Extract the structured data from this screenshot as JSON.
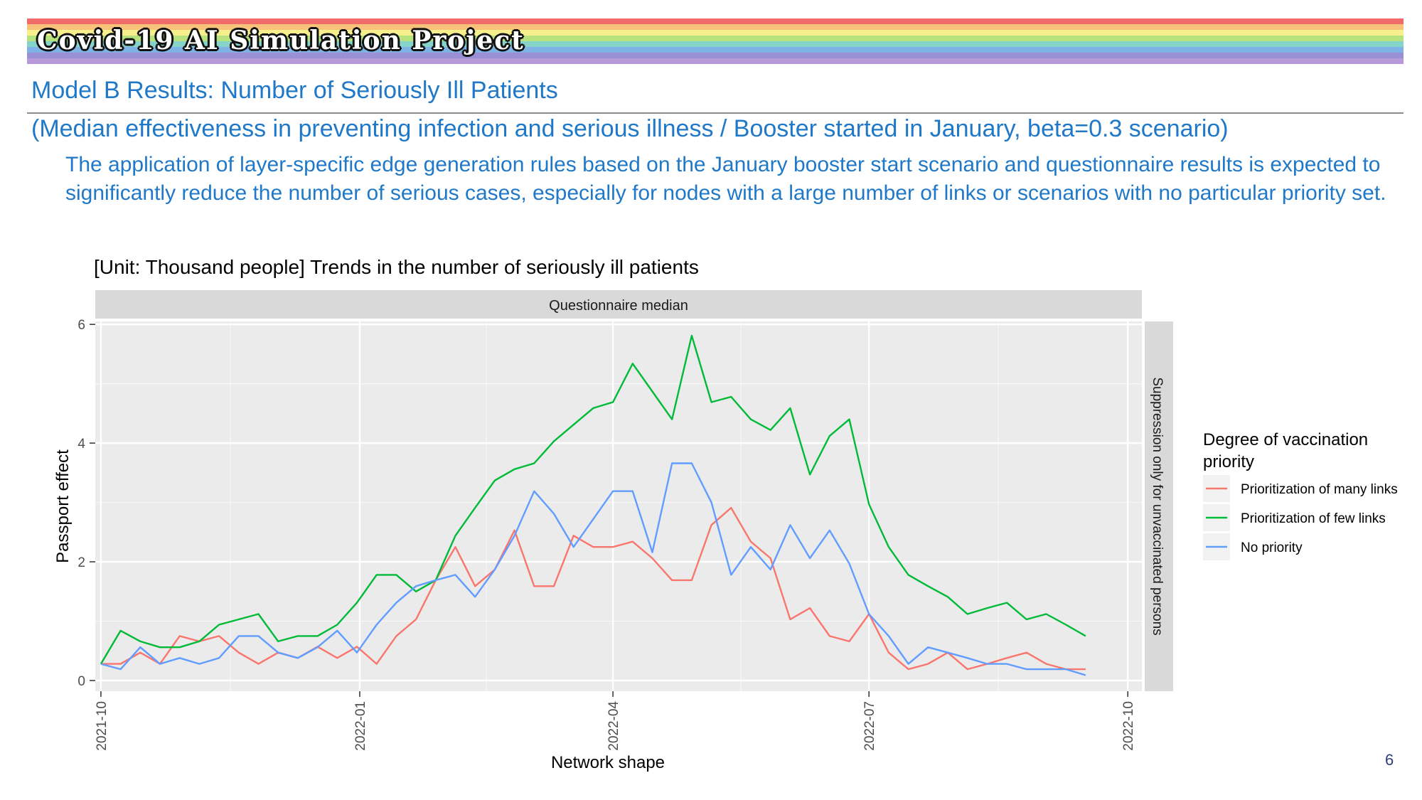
{
  "banner": {
    "title": "Covid-19 AI Simulation Project",
    "stripe_colors": [
      "#f26b6b",
      "#f7c27a",
      "#f6ef8c",
      "#b8e27e",
      "#86d3c9",
      "#7fb3e6",
      "#9b8fd6",
      "#b79ad8"
    ]
  },
  "title": "Model B Results: Number of Seriously Ill Patients",
  "subtitle": "(Median effectiveness in preventing infection and serious illness / Booster started in January, beta=0.3 scenario)",
  "description": "The application of layer-specific edge generation rules based on the January booster start scenario and questionnaire results is expected to significantly reduce the number of serious cases, especially for nodes with a large number of links or scenarios with no particular priority set.",
  "page_number": "6",
  "chart_data": {
    "type": "line",
    "title": "[Unit: Thousand people] Trends in the number of seriously ill patients",
    "facet_top": "Questionnaire median",
    "facet_right": "Suppression only for unvaccinated persons",
    "xlabel": "Network shape",
    "ylabel": "Passport effect",
    "x_ticks": [
      "2021-10",
      "2022-01",
      "2022-04",
      "2022-07",
      "2022-10"
    ],
    "y_ticks": [
      0,
      2,
      4,
      6
    ],
    "xlim": [
      "2021-09-29",
      "2022-10-06"
    ],
    "ylim": [
      -0.18,
      6.05
    ],
    "grid": true,
    "legend_position": "right",
    "legend_title": "Degree of vaccination priority",
    "x": [
      "2021-10-01",
      "2021-10-08",
      "2021-10-15",
      "2021-10-22",
      "2021-10-29",
      "2021-11-05",
      "2021-11-12",
      "2021-11-19",
      "2021-11-26",
      "2021-12-03",
      "2021-12-10",
      "2021-12-17",
      "2021-12-24",
      "2021-12-31",
      "2022-01-07",
      "2022-01-14",
      "2022-01-21",
      "2022-01-28",
      "2022-02-04",
      "2022-02-11",
      "2022-02-18",
      "2022-02-25",
      "2022-03-04",
      "2022-03-11",
      "2022-03-18",
      "2022-03-25",
      "2022-04-01",
      "2022-04-08",
      "2022-04-15",
      "2022-04-22",
      "2022-04-29",
      "2022-05-06",
      "2022-05-13",
      "2022-05-20",
      "2022-05-27",
      "2022-06-03",
      "2022-06-10",
      "2022-06-17",
      "2022-06-24",
      "2022-07-01",
      "2022-07-08",
      "2022-07-15",
      "2022-07-22",
      "2022-07-29",
      "2022-08-05",
      "2022-08-12",
      "2022-08-19",
      "2022-08-26",
      "2022-09-02",
      "2022-09-09",
      "2022-09-16"
    ],
    "series": [
      {
        "name": "Prioritization of many links",
        "color": "#f8766d",
        "values": [
          0.28,
          0.28,
          0.47,
          0.28,
          0.75,
          0.66,
          0.75,
          0.47,
          0.28,
          0.47,
          0.38,
          0.57,
          0.38,
          0.57,
          0.28,
          0.75,
          1.03,
          1.69,
          2.25,
          1.59,
          1.87,
          2.53,
          1.59,
          1.59,
          2.44,
          2.25,
          2.25,
          2.34,
          2.06,
          1.69,
          1.69,
          2.62,
          2.91,
          2.34,
          2.06,
          1.03,
          1.22,
          0.75,
          0.66,
          1.12,
          0.47,
          0.19,
          0.28,
          0.47,
          0.19,
          0.28,
          0.38,
          0.47,
          0.28,
          0.19,
          0.19
        ]
      },
      {
        "name": "Prioritization of few links",
        "color": "#00ba38",
        "values": [
          0.28,
          0.84,
          0.66,
          0.56,
          0.56,
          0.66,
          0.94,
          1.03,
          1.12,
          0.66,
          0.75,
          0.75,
          0.94,
          1.31,
          1.78,
          1.78,
          1.5,
          1.69,
          2.44,
          2.91,
          3.37,
          3.56,
          3.66,
          4.03,
          4.31,
          4.59,
          4.69,
          5.34,
          4.87,
          4.4,
          5.81,
          4.69,
          4.78,
          4.4,
          4.22,
          4.59,
          3.47,
          4.12,
          4.4,
          2.97,
          2.25,
          1.78,
          1.59,
          1.41,
          1.12,
          1.22,
          1.31,
          1.03,
          1.12,
          0.94,
          0.75
        ]
      },
      {
        "name": "No priority",
        "color": "#619cff",
        "values": [
          0.28,
          0.19,
          0.56,
          0.28,
          0.38,
          0.28,
          0.38,
          0.75,
          0.75,
          0.47,
          0.38,
          0.56,
          0.84,
          0.47,
          0.94,
          1.31,
          1.59,
          1.69,
          1.78,
          1.41,
          1.87,
          2.44,
          3.19,
          2.81,
          2.25,
          2.72,
          3.19,
          3.19,
          2.16,
          3.66,
          3.66,
          3.0,
          1.78,
          2.25,
          1.87,
          2.62,
          2.06,
          2.53,
          1.97,
          1.12,
          0.75,
          0.28,
          0.56,
          0.47,
          0.38,
          0.28,
          0.28,
          0.19,
          0.19,
          0.19,
          0.09
        ]
      }
    ]
  }
}
